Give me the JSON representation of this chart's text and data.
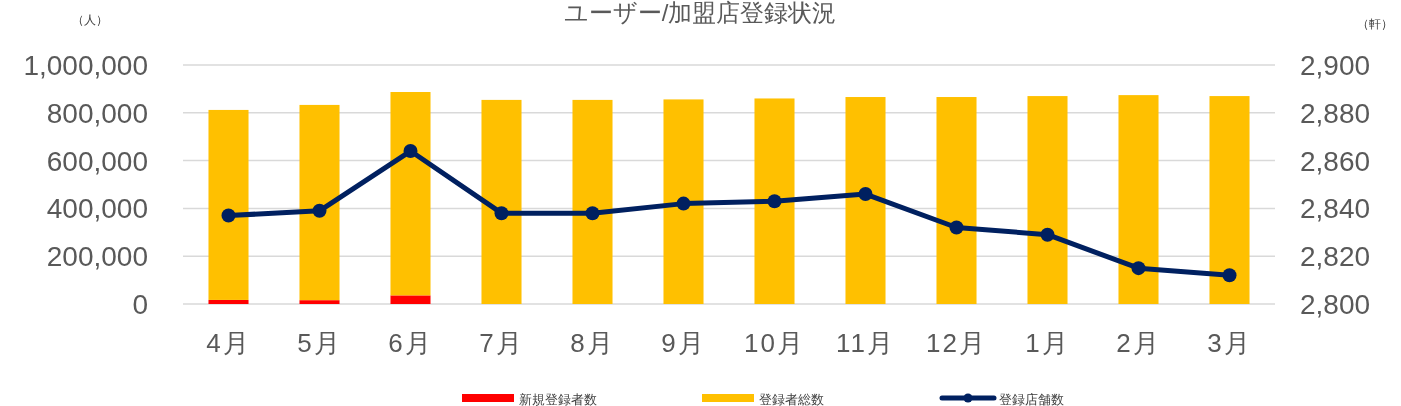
{
  "chart_data": {
    "type": "bar",
    "title": "ユーザー/加盟店登録状況",
    "ylabel": "（人）",
    "y2label": "（軒）",
    "categories": [
      "4月",
      "5月",
      "6月",
      "7月",
      "8月",
      "9月",
      "10月",
      "11月",
      "12月",
      "1月",
      "2月",
      "3月"
    ],
    "stacked": true,
    "series": [
      {
        "name": "新規登録者数",
        "color": "#ff0000",
        "values": [
          17000,
          16000,
          36000,
          0,
          0,
          0,
          0,
          0,
          0,
          0,
          0,
          0
        ]
      },
      {
        "name": "登録者総数",
        "color": "#ffc000",
        "values": [
          795000,
          817000,
          851000,
          854000,
          854000,
          856000,
          860000,
          866000,
          866000,
          870000,
          874000,
          870000
        ]
      },
      {
        "name": "登録店舗数",
        "type": "line",
        "axis": "y2",
        "color": "#002060",
        "marker": "circle",
        "values": [
          2837,
          2839,
          2864,
          2838,
          2838,
          2842,
          2843,
          2846,
          2832,
          2829,
          2815,
          2812
        ]
      }
    ],
    "ylim": [
      0,
      1000000
    ],
    "yticks": [
      {
        "value": 0,
        "label": "0"
      },
      {
        "value": 200000,
        "label": "200,000"
      },
      {
        "value": 400000,
        "label": "400,000"
      },
      {
        "value": 600000,
        "label": "600,000"
      },
      {
        "value": 800000,
        "label": "800,000"
      },
      {
        "value": 1000000,
        "label": "1,000,000"
      }
    ],
    "y2lim": [
      2800,
      2900
    ],
    "y2ticks": [
      {
        "value": 2800,
        "label": "2,800"
      },
      {
        "value": 2820,
        "label": "2,820"
      },
      {
        "value": 2840,
        "label": "2,840"
      },
      {
        "value": 2860,
        "label": "2,860"
      },
      {
        "value": 2880,
        "label": "2,880"
      },
      {
        "value": 2900,
        "label": "2,900"
      }
    ],
    "grid": "y",
    "legend": "bottom"
  }
}
